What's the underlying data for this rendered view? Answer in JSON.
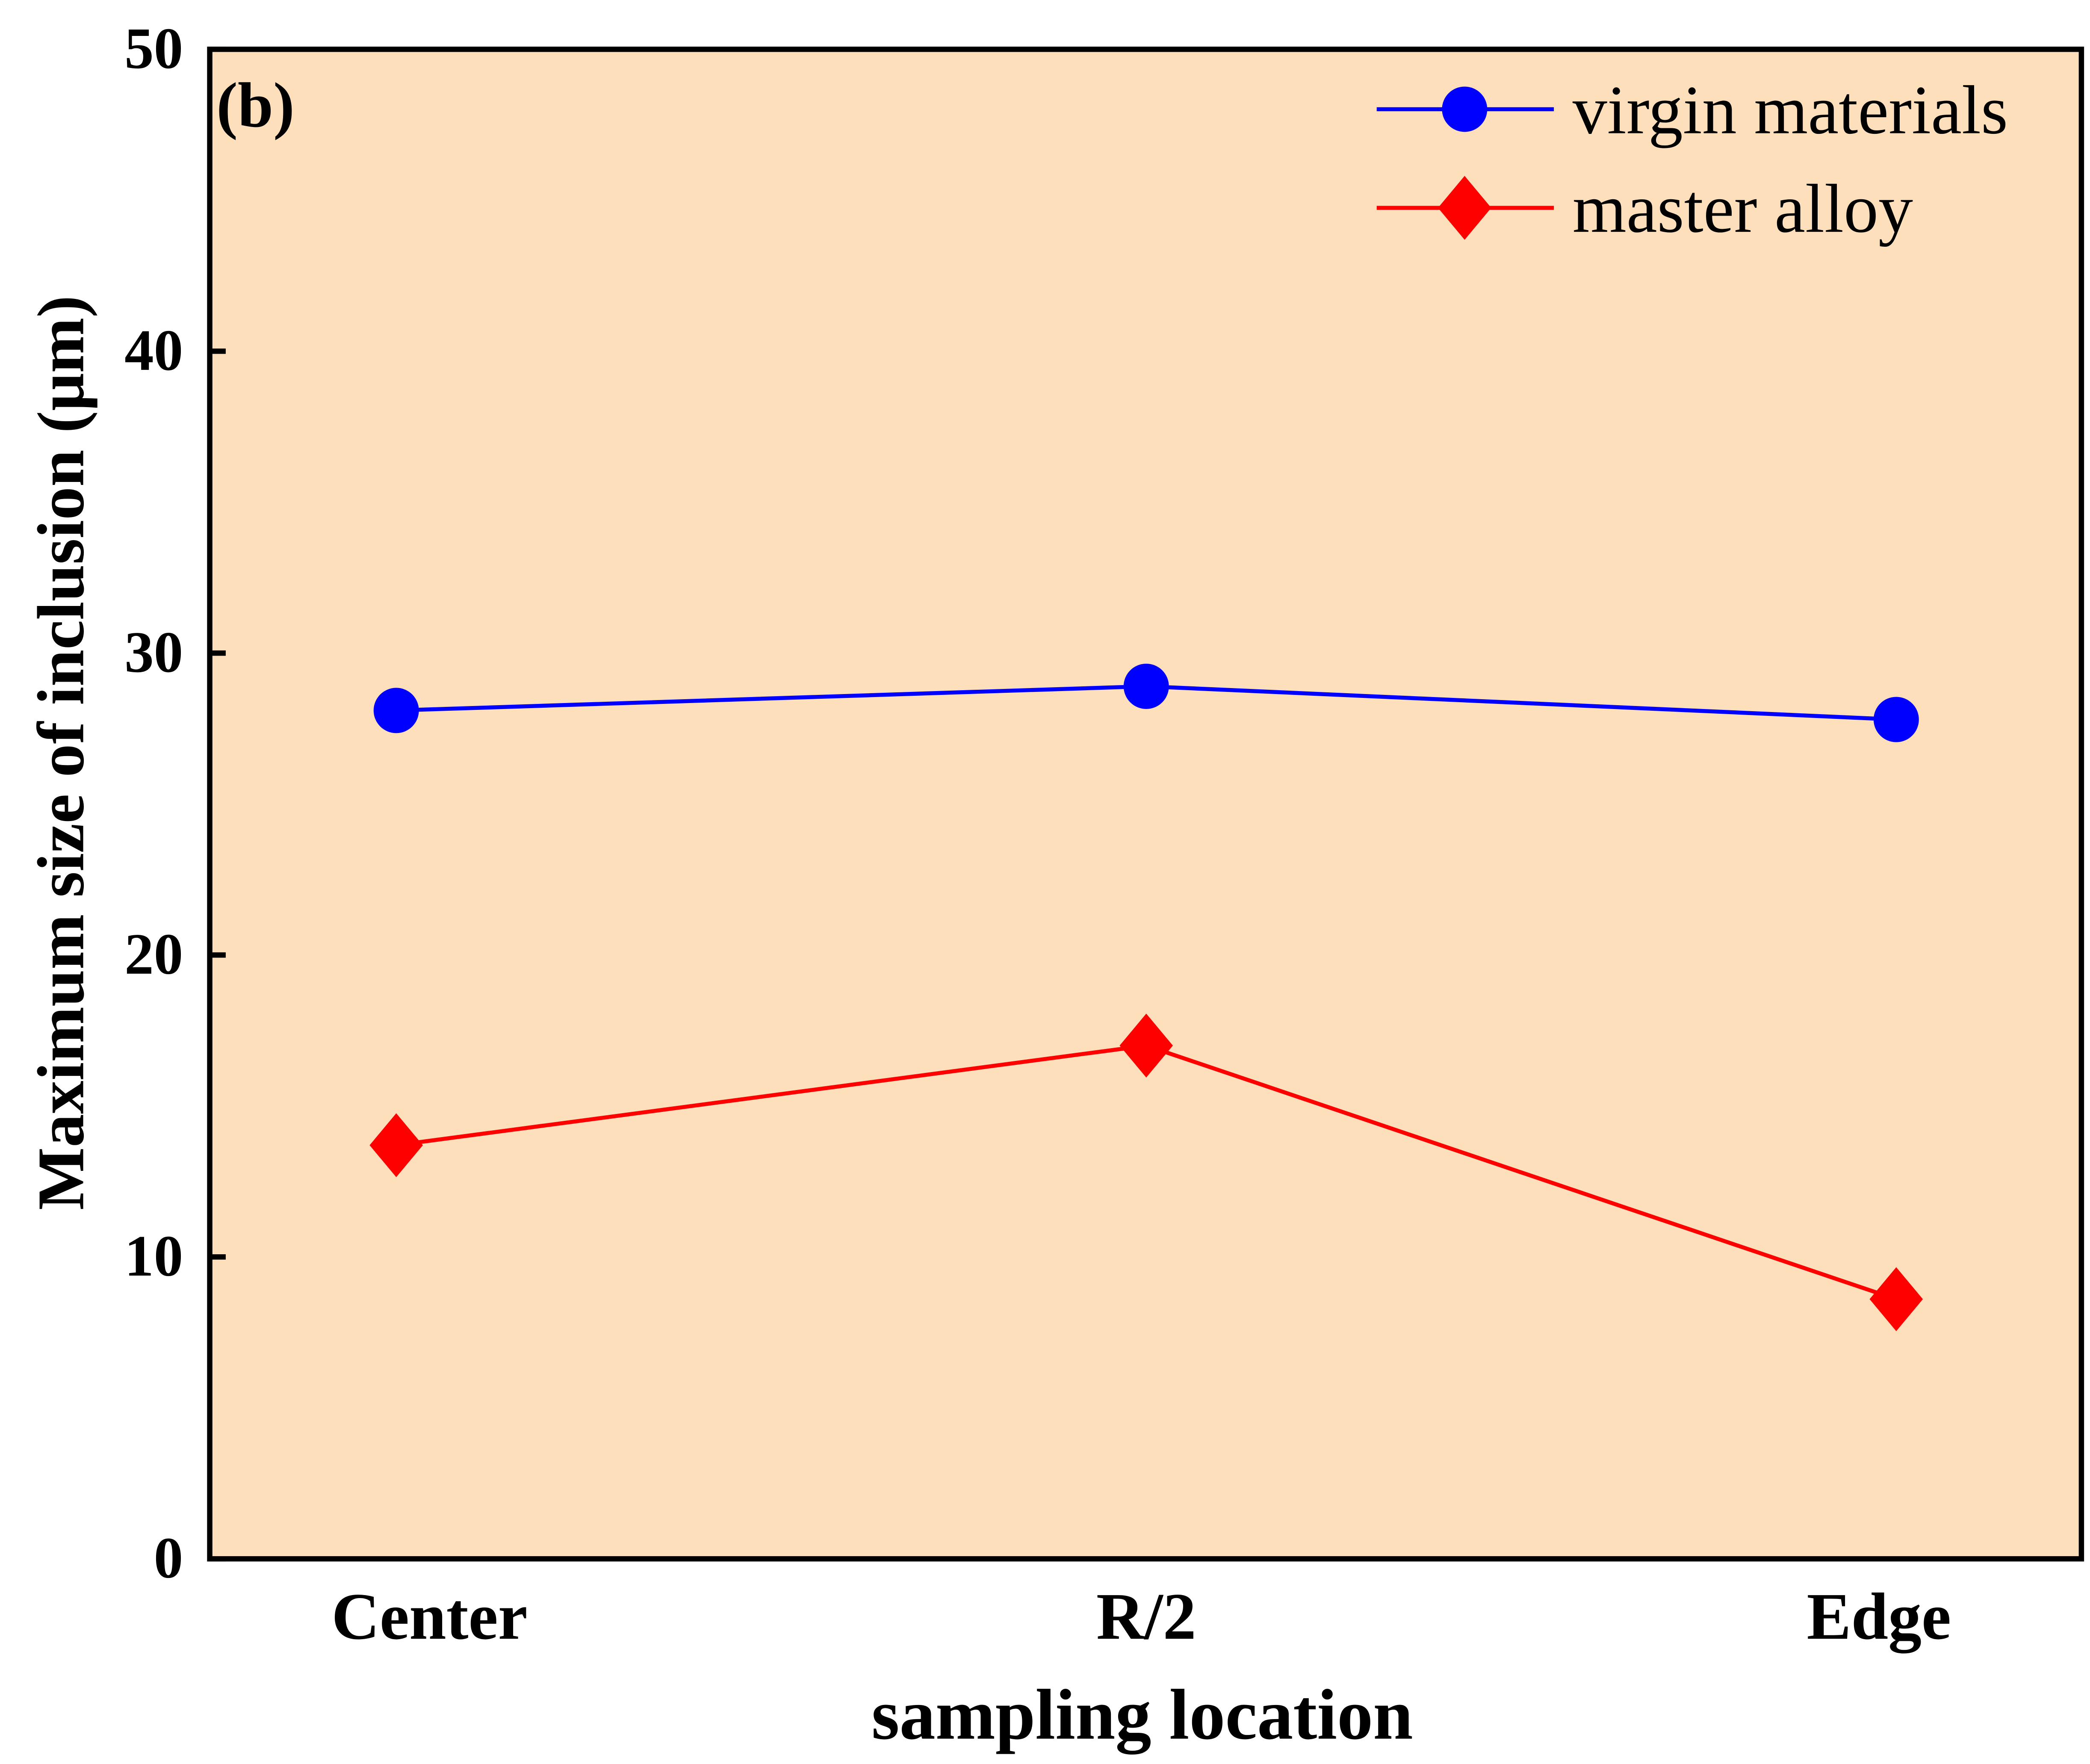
{
  "chart_data": {
    "type": "line",
    "panel_label": "(b)",
    "categories": [
      "Center",
      "R/2",
      "Edge"
    ],
    "xlabel": "sampling location",
    "ylabel": "Maximum size of inclusion (μm)",
    "ylim": [
      0,
      50
    ],
    "yticks": [
      "0",
      "10",
      "20",
      "30",
      "40",
      "50"
    ],
    "grid": false,
    "legend_position": "top-right",
    "plot_background": "#FDDFBC",
    "series": [
      {
        "name": "virgin materials",
        "values": [
          28.1,
          28.9,
          27.8
        ],
        "color": "#0000FF",
        "marker": "circle"
      },
      {
        "name": "master alloy",
        "values": [
          13.7,
          17.0,
          8.6
        ],
        "color": "#FF0000",
        "marker": "diamond"
      }
    ]
  }
}
